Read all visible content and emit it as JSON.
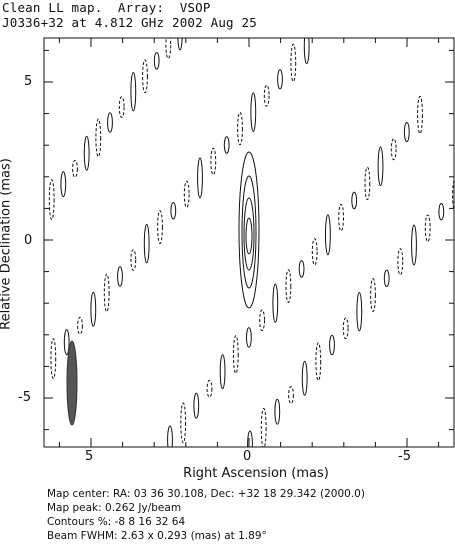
{
  "header": {
    "title_line1": "Clean LL map.  Array:  VSOP",
    "title_line2": "J0336+32 at 4.812 GHz 2002 Aug 25"
  },
  "axes": {
    "x_label": "Right Ascension  (mas)",
    "y_label": "Relative Declination  (mas)",
    "x_ticks": [
      "5",
      "0",
      "-5"
    ],
    "y_ticks": [
      "5",
      "0",
      "-5"
    ]
  },
  "info": {
    "map_center": "Map center:  RA: 03 36 30.108,  Dec: +32 18 29.342 (2000.0)",
    "map_peak": "Map peak: 0.262 Jy/beam",
    "contours": "Contours %: -8 8 16 32 64",
    "beam": "Beam FWHM: 2.63 x 0.293 (mas) at 1.89°"
  },
  "chart_data": {
    "type": "contour",
    "x_range": [
      6.3,
      -6.3
    ],
    "y_range": [
      -6.4,
      6.8
    ],
    "peak_jy_per_beam": 0.262,
    "contour_levels_percent": [
      -8,
      8,
      16,
      32,
      64
    ],
    "beam": {
      "major_mas": 2.63,
      "minor_mas": 0.293,
      "pa_deg": 1.89
    },
    "colors": {
      "contour": "#111111",
      "beam": "#555555"
    }
  }
}
